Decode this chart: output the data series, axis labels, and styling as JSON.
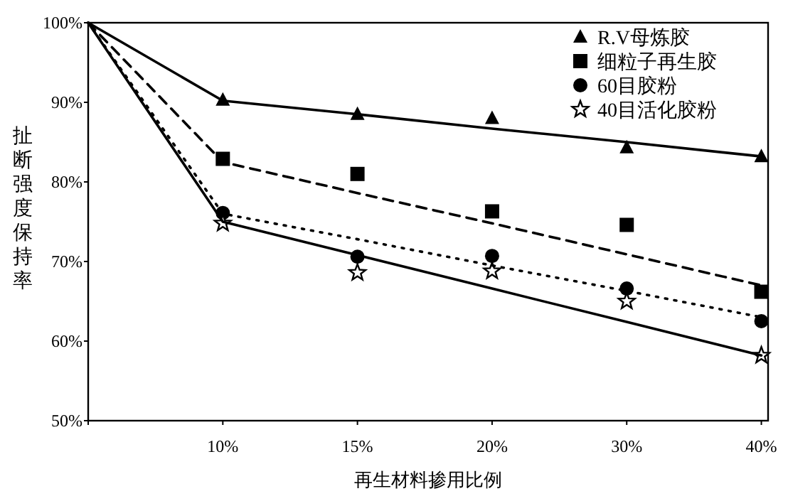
{
  "chart_data": {
    "type": "scatter",
    "xlabel": "再生材料掺用比例",
    "ylabel": "扯断强度保持率",
    "categories": [
      null,
      "10%",
      "15%",
      "20%",
      "30%",
      "40%"
    ],
    "ylim": [
      50,
      100
    ],
    "yticks": [
      {
        "value": 50,
        "label": "50%"
      },
      {
        "value": 60,
        "label": "60%"
      },
      {
        "value": 70,
        "label": "70%"
      },
      {
        "value": 80,
        "label": "80%"
      },
      {
        "value": 90,
        "label": "90%"
      },
      {
        "value": 100,
        "label": "100%"
      }
    ],
    "legend": "top right",
    "grid": false,
    "series": [
      {
        "name": "R.V母炼胶",
        "marker": "triangle",
        "color": "#000000",
        "values": [
          null,
          90.3,
          88.5,
          88.0,
          84.3,
          83.2
        ]
      },
      {
        "name": "细粒子再生胶",
        "marker": "square",
        "color": "#000000",
        "values": [
          null,
          82.9,
          81.0,
          76.3,
          74.6,
          66.2
        ]
      },
      {
        "name": "60目胶粉",
        "marker": "circle",
        "color": "#000000",
        "values": [
          null,
          76.1,
          70.6,
          70.7,
          66.6,
          62.5
        ]
      },
      {
        "name": "40目活化胶粉",
        "marker": "star",
        "color": "#000000",
        "values": [
          null,
          74.8,
          68.6,
          68.8,
          65.0,
          58.2
        ]
      },
      {
        "type": "line",
        "line_style": "solid",
        "color": "#000000",
        "values": [
          100,
          90.2,
          88.5,
          86.7,
          85.0,
          83.2
        ]
      },
      {
        "type": "line",
        "line_style": "dashed",
        "color": "#000000",
        "values": [
          100,
          82.5,
          78.6,
          74.8,
          70.9,
          67.0
        ]
      },
      {
        "type": "line",
        "line_style": "dotted",
        "color": "#000000",
        "values": [
          100,
          76.0,
          72.8,
          69.5,
          66.3,
          63.0
        ]
      },
      {
        "type": "line",
        "line_style": "solid",
        "color": "#000000",
        "values": [
          100,
          75.0,
          70.8,
          66.6,
          62.4,
          58.2
        ]
      }
    ]
  }
}
